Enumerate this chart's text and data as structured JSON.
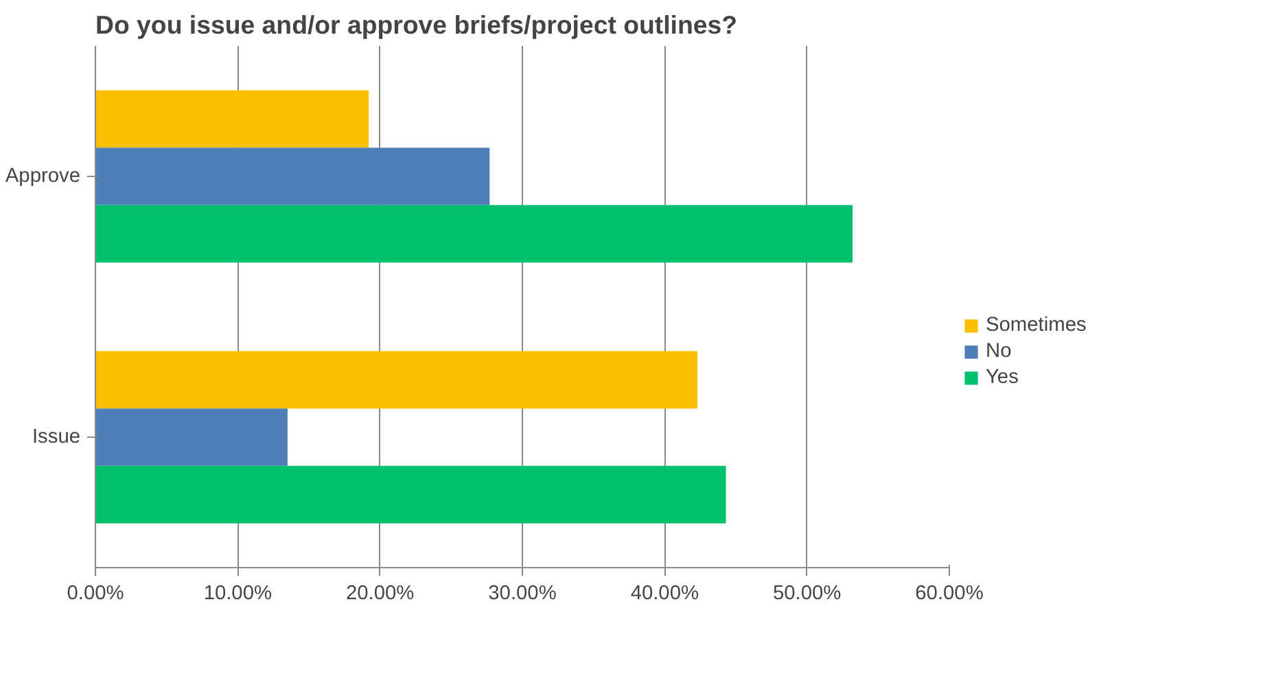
{
  "chart_data": {
    "type": "bar",
    "orientation": "horizontal",
    "title": "Do you issue and/or approve briefs/project outlines?",
    "categories": [
      "Approve",
      "Issue"
    ],
    "series": [
      {
        "name": "Sometimes",
        "color": "#f9bf00",
        "values": [
          19.2,
          42.3
        ]
      },
      {
        "name": "No",
        "color": "#4f7fb8",
        "values": [
          27.7,
          13.5
        ]
      },
      {
        "name": "Yes",
        "color": "#00c06b",
        "values": [
          53.2,
          44.3
        ]
      }
    ],
    "xlim": [
      0,
      60
    ],
    "xticks": [
      {
        "value": 0,
        "label": "0.00%"
      },
      {
        "value": 10,
        "label": "10.00%"
      },
      {
        "value": 20,
        "label": "20.00%"
      },
      {
        "value": 30,
        "label": "30.00%"
      },
      {
        "value": 40,
        "label": "40.00%"
      },
      {
        "value": 50,
        "label": "50.00%"
      },
      {
        "value": 60,
        "label": "60.00%"
      }
    ],
    "grid": "x",
    "legend": "right"
  }
}
